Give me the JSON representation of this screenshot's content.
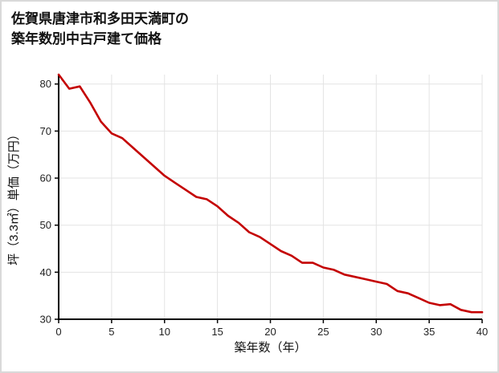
{
  "page": {
    "title_line1": "佐賀県唐津市和多田天満町の",
    "title_line2": "築年数別中古戸建て価格"
  },
  "chart_data": {
    "type": "line",
    "title": "佐賀県唐津市和多田天満町の築年数別中古戸建て価格",
    "xlabel": "築年数（年）",
    "ylabel": "坪（3.3㎡）単価（万円）",
    "x": [
      0,
      1,
      2,
      3,
      4,
      5,
      6,
      7,
      8,
      9,
      10,
      11,
      12,
      13,
      14,
      15,
      16,
      17,
      18,
      19,
      20,
      21,
      22,
      23,
      24,
      25,
      26,
      27,
      28,
      29,
      30,
      31,
      32,
      33,
      34,
      35,
      36,
      37,
      38,
      39,
      40
    ],
    "y": [
      82,
      79,
      79.5,
      76,
      72,
      69.5,
      68.5,
      66.5,
      64.5,
      62.5,
      60.5,
      59,
      57.5,
      56,
      55.5,
      54,
      52,
      50.5,
      48.5,
      47.5,
      46,
      44.5,
      43.5,
      42,
      42,
      41,
      40.5,
      39.5,
      39,
      38.5,
      38,
      37.5,
      36,
      35.5,
      34.5,
      33.5,
      33,
      33.2,
      32,
      31.5,
      31.5
    ],
    "xlim": [
      0,
      40
    ],
    "ylim": [
      30,
      82
    ],
    "x_ticks": [
      0,
      5,
      10,
      15,
      20,
      25,
      30,
      35,
      40
    ],
    "y_ticks": [
      30,
      40,
      50,
      60,
      70,
      80
    ],
    "grid": true,
    "legend": "none",
    "line_color": "#c40000",
    "grid_color": "#e3e3e3",
    "axis_color": "#000000",
    "tick_label_color": "#222222"
  }
}
